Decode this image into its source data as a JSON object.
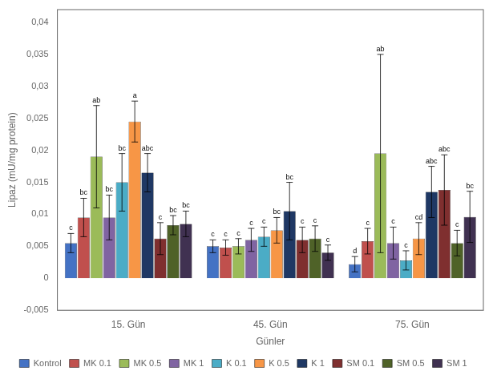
{
  "chart_data": {
    "type": "bar",
    "xlabel": "Günler",
    "ylabel": "Lipaz (mU/mg protein)",
    "categories": [
      "15. Gün",
      "45. Gün",
      "75. Gün"
    ],
    "series": [
      {
        "name": "Kontrol",
        "color": "#4472C4",
        "values": [
          0.0055,
          0.005,
          0.0022
        ],
        "errors": [
          0.0015,
          0.001,
          0.0012
        ],
        "letters": [
          "c",
          "c",
          "d"
        ]
      },
      {
        "name": "MK 0.1",
        "color": "#C0504D",
        "values": [
          0.0095,
          0.0048,
          0.0058
        ],
        "errors": [
          0.003,
          0.0012,
          0.002
        ],
        "letters": [
          "bc",
          "c",
          "c"
        ]
      },
      {
        "name": "MK 0.5",
        "color": "#9BBB59",
        "values": [
          0.019,
          0.005,
          0.0195
        ],
        "errors": [
          0.008,
          0.0012,
          0.0155
        ],
        "letters": [
          "ab",
          "c",
          "ab"
        ]
      },
      {
        "name": "MK 1",
        "color": "#8064A2",
        "values": [
          0.0095,
          0.006,
          0.0055
        ],
        "errors": [
          0.0035,
          0.0018,
          0.0025
        ],
        "letters": [
          "bc",
          "c",
          "c"
        ]
      },
      {
        "name": "K 0.1",
        "color": "#4BACC6",
        "values": [
          0.015,
          0.0065,
          0.0028
        ],
        "errors": [
          0.0045,
          0.0015,
          0.0015
        ],
        "letters": [
          "bc",
          "c",
          "c"
        ]
      },
      {
        "name": "K 0.5",
        "color": "#F79646",
        "values": [
          0.0245,
          0.0075,
          0.0062
        ],
        "errors": [
          0.0032,
          0.002,
          0.0025
        ],
        "letters": [
          "a",
          "bc",
          "cd"
        ]
      },
      {
        "name": "K 1",
        "color": "#1F3864",
        "values": [
          0.0165,
          0.0105,
          0.0135
        ],
        "errors": [
          0.003,
          0.0045,
          0.004
        ],
        "letters": [
          "abc",
          "bc",
          "abc"
        ]
      },
      {
        "name": "SM 0.1",
        "color": "#7F2F2F",
        "values": [
          0.0062,
          0.006,
          0.0138
        ],
        "errors": [
          0.0025,
          0.002,
          0.0055
        ],
        "letters": [
          "c",
          "c",
          "abc"
        ]
      },
      {
        "name": "SM 0.5",
        "color": "#4F6228",
        "values": [
          0.0083,
          0.0062,
          0.0055
        ],
        "errors": [
          0.0015,
          0.002,
          0.002
        ],
        "letters": [
          "bc",
          "c",
          "c"
        ]
      },
      {
        "name": "SM 1",
        "color": "#403151",
        "values": [
          0.0085,
          0.004,
          0.0096
        ],
        "errors": [
          0.002,
          0.0012,
          0.004
        ],
        "letters": [
          "bc",
          "c",
          "bc"
        ]
      }
    ],
    "ylim": [
      -0.005,
      0.042
    ],
    "yticks": [
      {
        "value": -0.005,
        "label": "-0,005"
      },
      0,
      {
        "value": 0.005,
        "label": "0,005"
      },
      {
        "value": 0.01,
        "label": "0,01"
      },
      {
        "value": 0.015,
        "label": "0,015"
      },
      {
        "value": 0.02,
        "label": "0,02"
      },
      {
        "value": 0.025,
        "label": "0,025"
      },
      {
        "value": 0.03,
        "label": "0,03"
      },
      {
        "value": 0.035,
        "label": "0,035"
      },
      {
        "value": 0.04,
        "label": "0,04"
      }
    ],
    "grid": false,
    "legend": "bottom"
  }
}
